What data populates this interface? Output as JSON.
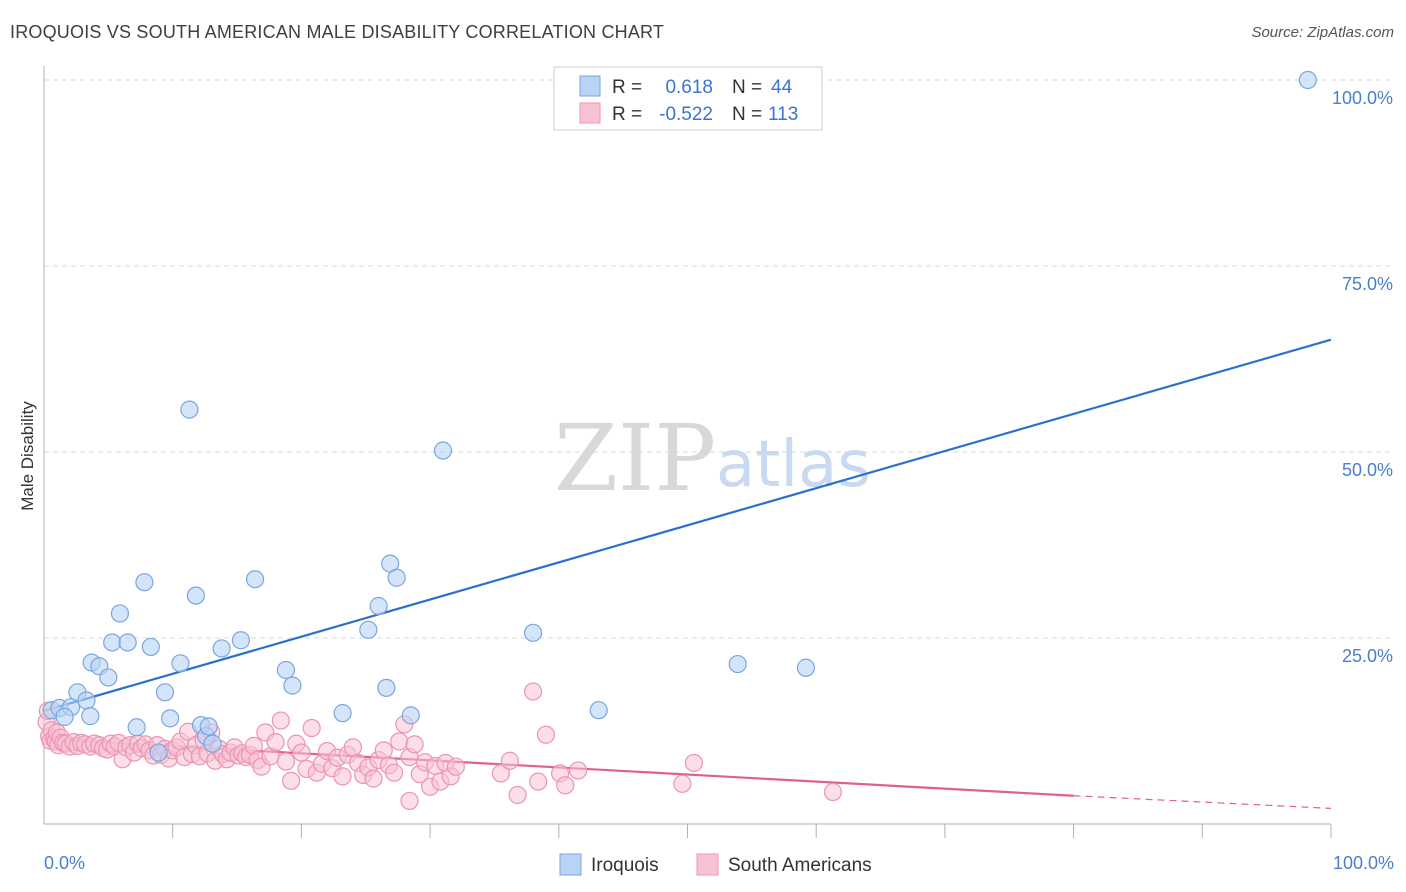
{
  "title": "IROQUOIS VS SOUTH AMERICAN MALE DISABILITY CORRELATION CHART",
  "source": "Source: ZipAtlas.com",
  "watermark": {
    "zip": "ZIP",
    "atlas": "atlas"
  },
  "colors": {
    "iroquois_fill": "#b9d3f5",
    "iroquois_stroke": "#7aa6e0",
    "iroquois_line": "#2b70d0",
    "south_fill": "#f7c3d4",
    "south_stroke": "#ec94b2",
    "south_line": "#e0608e",
    "grid": "#d8d8d8",
    "tick_text": "#4a7fc9"
  },
  "legend": {
    "rows": [
      {
        "r_label": "R =",
        "r_value": "0.618",
        "n_label": "N =",
        "n_value": "44"
      },
      {
        "r_label": "R =",
        "r_value": "-0.522",
        "n_label": "N =",
        "n_value": "113"
      }
    ]
  },
  "bottom_legend": [
    "Iroquois",
    "South Americans"
  ],
  "chart_data": {
    "type": "scatter",
    "title": "IROQUOIS VS SOUTH AMERICAN MALE DISABILITY CORRELATION CHART",
    "xlabel": "",
    "ylabel": "Male Disability",
    "xlim": [
      0,
      100
    ],
    "ylim": [
      0,
      100
    ],
    "x_tick_labels": [
      "0.0%",
      "100.0%"
    ],
    "y_tick_labels": [
      "100.0%",
      "75.0%",
      "50.0%",
      "25.0%"
    ],
    "y_ticks": [
      100,
      75,
      50,
      25
    ],
    "grid": true,
    "legend_position": "top-center",
    "series": [
      {
        "name": "Iroquois",
        "r": 0.618,
        "n": 44,
        "trend": {
          "x": [
            0,
            100
          ],
          "y": [
            15.2,
            65.1
          ],
          "style": "solid"
        },
        "points": [
          [
            0.6,
            15.3
          ],
          [
            1.2,
            15.6
          ],
          [
            2.1,
            15.7
          ],
          [
            2.6,
            17.7
          ],
          [
            3.3,
            16.6
          ],
          [
            3.7,
            21.7
          ],
          [
            4.3,
            21.2
          ],
          [
            5.0,
            19.7
          ],
          [
            5.3,
            24.4
          ],
          [
            5.9,
            28.3
          ],
          [
            6.5,
            24.4
          ],
          [
            7.2,
            13.0
          ],
          [
            7.8,
            32.5
          ],
          [
            8.3,
            23.8
          ],
          [
            8.9,
            9.6
          ],
          [
            9.4,
            17.7
          ],
          [
            9.8,
            14.2
          ],
          [
            10.6,
            21.6
          ],
          [
            11.3,
            55.7
          ],
          [
            11.8,
            30.7
          ],
          [
            12.2,
            13.3
          ],
          [
            12.6,
            11.8
          ],
          [
            12.8,
            13.1
          ],
          [
            13.1,
            10.8
          ],
          [
            13.8,
            23.6
          ],
          [
            15.3,
            24.7
          ],
          [
            16.4,
            32.9
          ],
          [
            18.8,
            20.7
          ],
          [
            19.3,
            18.6
          ],
          [
            23.2,
            14.9
          ],
          [
            25.2,
            26.1
          ],
          [
            26.0,
            29.3
          ],
          [
            26.6,
            18.3
          ],
          [
            26.9,
            35.0
          ],
          [
            27.4,
            33.1
          ],
          [
            28.5,
            14.6
          ],
          [
            31.0,
            50.2
          ],
          [
            38.0,
            25.7
          ],
          [
            43.1,
            15.3
          ],
          [
            53.9,
            21.5
          ],
          [
            59.2,
            21.0
          ],
          [
            98.2,
            100.0
          ],
          [
            3.6,
            14.5
          ],
          [
            1.6,
            14.4
          ]
        ]
      },
      {
        "name": "South Americans",
        "r": -0.522,
        "n": 113,
        "trend": {
          "x": [
            0,
            80
          ],
          "y": [
            11.4,
            3.8
          ],
          "style": "solid",
          "dashed_extension": {
            "x": [
              80,
              100
            ],
            "y": [
              3.8,
              2.1
            ]
          }
        },
        "points": [
          [
            0.2,
            13.7
          ],
          [
            0.3,
            15.2
          ],
          [
            0.4,
            11.8
          ],
          [
            0.5,
            11.2
          ],
          [
            0.6,
            12.6
          ],
          [
            0.8,
            11.5
          ],
          [
            0.9,
            11.1
          ],
          [
            1.0,
            12.3
          ],
          [
            1.1,
            10.6
          ],
          [
            1.3,
            11.6
          ],
          [
            1.5,
            10.9
          ],
          [
            1.7,
            10.8
          ],
          [
            2.0,
            10.4
          ],
          [
            2.3,
            11.0
          ],
          [
            2.6,
            10.5
          ],
          [
            2.9,
            10.9
          ],
          [
            3.2,
            10.7
          ],
          [
            3.6,
            10.4
          ],
          [
            3.9,
            10.8
          ],
          [
            4.3,
            10.6
          ],
          [
            4.6,
            10.2
          ],
          [
            4.9,
            10.0
          ],
          [
            5.2,
            10.8
          ],
          [
            5.5,
            10.4
          ],
          [
            5.8,
            10.9
          ],
          [
            6.1,
            8.7
          ],
          [
            6.4,
            10.3
          ],
          [
            6.7,
            10.6
          ],
          [
            7.0,
            9.6
          ],
          [
            7.3,
            10.8
          ],
          [
            7.6,
            10.2
          ],
          [
            7.9,
            10.7
          ],
          [
            8.2,
            9.9
          ],
          [
            8.5,
            9.2
          ],
          [
            8.8,
            10.6
          ],
          [
            9.1,
            9.3
          ],
          [
            9.4,
            10.1
          ],
          [
            9.7,
            8.8
          ],
          [
            10.0,
            9.9
          ],
          [
            10.3,
            10.3
          ],
          [
            10.6,
            11.1
          ],
          [
            10.9,
            9.0
          ],
          [
            11.2,
            12.4
          ],
          [
            11.5,
            9.4
          ],
          [
            11.8,
            10.6
          ],
          [
            12.1,
            9.1
          ],
          [
            12.4,
            11.2
          ],
          [
            12.7,
            9.5
          ],
          [
            13.0,
            12.3
          ],
          [
            13.3,
            8.5
          ],
          [
            13.6,
            10.1
          ],
          [
            13.9,
            9.4
          ],
          [
            14.2,
            8.7
          ],
          [
            14.5,
            9.6
          ],
          [
            14.8,
            10.3
          ],
          [
            15.1,
            9.2
          ],
          [
            15.4,
            9.5
          ],
          [
            15.7,
            9.0
          ],
          [
            16.0,
            9.3
          ],
          [
            16.3,
            10.5
          ],
          [
            16.6,
            8.6
          ],
          [
            16.9,
            7.7
          ],
          [
            17.2,
            12.3
          ],
          [
            17.6,
            9.1
          ],
          [
            18.0,
            11.0
          ],
          [
            18.4,
            13.9
          ],
          [
            18.8,
            8.4
          ],
          [
            19.2,
            5.8
          ],
          [
            19.6,
            10.8
          ],
          [
            20.0,
            9.6
          ],
          [
            20.4,
            7.4
          ],
          [
            20.8,
            12.9
          ],
          [
            21.2,
            6.9
          ],
          [
            21.6,
            8.1
          ],
          [
            22.0,
            9.8
          ],
          [
            22.4,
            7.5
          ],
          [
            22.8,
            8.9
          ],
          [
            23.2,
            6.4
          ],
          [
            23.6,
            9.3
          ],
          [
            24.0,
            10.3
          ],
          [
            24.4,
            8.2
          ],
          [
            24.8,
            6.6
          ],
          [
            25.2,
            7.6
          ],
          [
            25.6,
            6.1
          ],
          [
            26.0,
            8.6
          ],
          [
            26.4,
            9.9
          ],
          [
            26.8,
            7.9
          ],
          [
            27.2,
            6.9
          ],
          [
            27.6,
            11.1
          ],
          [
            28.0,
            13.4
          ],
          [
            28.4,
            9.0
          ],
          [
            28.8,
            10.7
          ],
          [
            29.2,
            6.7
          ],
          [
            29.6,
            8.3
          ],
          [
            30.0,
            5.0
          ],
          [
            30.4,
            7.8
          ],
          [
            30.8,
            5.7
          ],
          [
            31.2,
            8.2
          ],
          [
            31.6,
            6.4
          ],
          [
            32.0,
            7.7
          ],
          [
            28.4,
            3.1
          ],
          [
            35.5,
            6.8
          ],
          [
            36.2,
            8.5
          ],
          [
            36.8,
            3.9
          ],
          [
            38.0,
            17.8
          ],
          [
            38.4,
            5.7
          ],
          [
            39.0,
            12.0
          ],
          [
            40.1,
            6.8
          ],
          [
            40.5,
            5.2
          ],
          [
            41.5,
            7.2
          ],
          [
            49.6,
            5.4
          ],
          [
            50.5,
            8.2
          ],
          [
            61.3,
            4.3
          ]
        ]
      }
    ]
  }
}
